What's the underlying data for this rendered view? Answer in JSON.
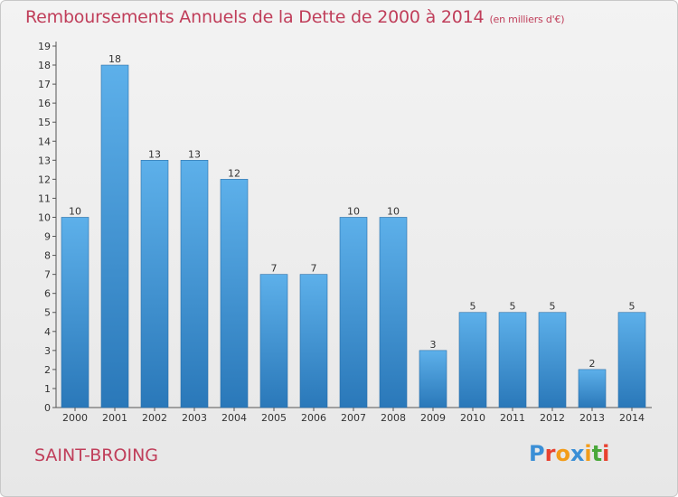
{
  "header": {
    "title": "Remboursements Annuels de la Dette de 2000 à 2014",
    "subtitle": "(en milliers d'€)"
  },
  "footer": {
    "place": "SAINT-BROING",
    "logo": "Proxiti",
    "logo_colors": [
      "#3b8fd6",
      "#e8412f",
      "#f39c19",
      "#3b8fd6",
      "#f39c19",
      "#4aa83a",
      "#e8412f"
    ]
  },
  "colors": {
    "bar_top": "#5db0ea",
    "bar_bottom": "#2a78b9",
    "axis": "#555555",
    "label": "#333333"
  },
  "chart_data": {
    "type": "bar",
    "title": "Remboursements Annuels de la Dette de 2000 à 2014",
    "subtitle": "(en milliers d'€)",
    "categories": [
      "2000",
      "2001",
      "2002",
      "2003",
      "2004",
      "2005",
      "2006",
      "2007",
      "2008",
      "2009",
      "2010",
      "2011",
      "2012",
      "2013",
      "2014"
    ],
    "values": [
      10,
      18,
      13,
      13,
      12,
      7,
      7,
      10,
      10,
      3,
      5,
      5,
      5,
      2,
      5
    ],
    "data_labels": [
      "10",
      "18",
      "13",
      "13",
      "12",
      "7",
      "7",
      "10",
      "10",
      "3",
      "5",
      "5",
      "5",
      "2",
      "5"
    ],
    "yticks": [
      "0",
      "1",
      "2",
      "3",
      "4",
      "5",
      "6",
      "7",
      "8",
      "9",
      "10",
      "11",
      "12",
      "13",
      "14",
      "15",
      "16",
      "17",
      "18",
      "19"
    ],
    "ylim": [
      0,
      19
    ],
    "xlabel": "",
    "ylabel": "",
    "grid": false,
    "legend": "none"
  }
}
